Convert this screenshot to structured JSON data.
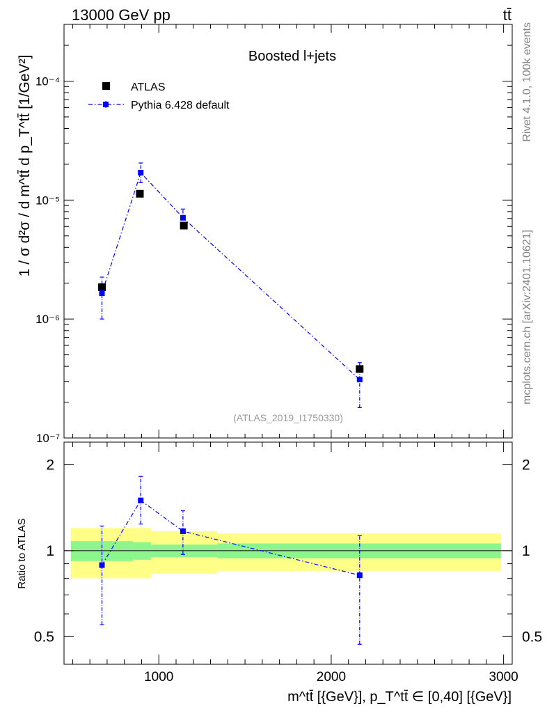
{
  "header": {
    "left": "13000 GeV pp",
    "right": "tt̄"
  },
  "side_labels": {
    "rivet": "Rivet 4.1.0,  100k events",
    "mcplots": "mcplots.cern.ch [arXiv:2401.10621]"
  },
  "chart_data": [
    {
      "type": "scatter",
      "panel": "main",
      "title": "Boosted l+jets",
      "analysis_id": "(ATLAS_2019_I1750330)",
      "ylabel": "1 / σ d²σ / d m^tt̄ d p_T^tt̄ [1/GeV²]",
      "yscale": "log",
      "ylim": [
        1e-07,
        0.0003
      ],
      "xlim": [
        450,
        3050
      ],
      "y_tick_labels": [
        "10⁻⁷",
        "10⁻⁶",
        "10⁻⁵",
        "10⁻⁴"
      ],
      "legend_position": "top-left",
      "series": [
        {
          "name": "ATLAS",
          "color": "#000000",
          "marker": "square",
          "x": [
            670,
            890,
            1145,
            2165
          ],
          "values": [
            1.85e-06,
            1.13e-05,
            6.1e-06,
            3.8e-07
          ],
          "band_edges": [
            490,
            850,
            955,
            1340,
            2985
          ],
          "rel_err_total": [
            0.2,
            0.2,
            0.17,
            0.15
          ],
          "rel_err_stat": [
            0.08,
            0.07,
            0.05,
            0.06
          ]
        },
        {
          "name": "Pythia 6.428 default",
          "color": "#0000ff",
          "marker": "square-small",
          "line": "dashdot",
          "x": [
            670,
            895,
            1140,
            2165
          ],
          "values": [
            1.65e-06,
            1.7e-05,
            7.1e-06,
            3.1e-07
          ],
          "err_low": [
            1e-06,
            1.4e-05,
            5.9e-06,
            1.8e-07
          ],
          "err_high": [
            2.25e-06,
            2.05e-05,
            8.4e-06,
            4.3e-07
          ]
        }
      ]
    },
    {
      "type": "scatter",
      "panel": "ratio",
      "ylabel": "Ratio to ATLAS",
      "yscale": "log",
      "ylim": [
        0.4,
        2.4
      ],
      "y_tick_labels": [
        "0.5",
        "1",
        "2"
      ],
      "xlabel": "m^tt̄ [{GeV}], p_T^tt̄ ∈ [0,40] [{GeV}]",
      "x_tick_labels": [
        "1000",
        "2000",
        "3000"
      ],
      "xlim": [
        450,
        3050
      ],
      "band_colors": {
        "total": "#ffff88",
        "stat": "#8cf58c"
      },
      "series": [
        {
          "name": "Pythia 6.428 default / ATLAS",
          "color": "#0000ff",
          "x": [
            670,
            895,
            1140,
            2165
          ],
          "values": [
            0.89,
            1.5,
            1.17,
            0.82
          ],
          "err_low": [
            0.55,
            1.24,
            0.97,
            0.47
          ],
          "err_high": [
            1.22,
            1.82,
            1.38,
            1.13
          ]
        }
      ]
    }
  ]
}
